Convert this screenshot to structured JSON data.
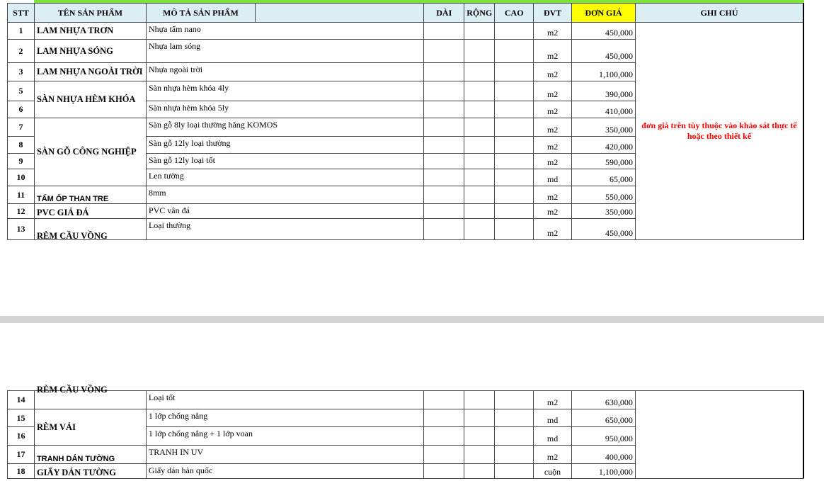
{
  "header": {
    "stt": "STT",
    "name": "TÊN SẢN PHẨM",
    "desc": "MÔ TẢ SẢN PHẨM",
    "length": "DÀI",
    "width": "RỘNG",
    "height": "CAO",
    "unit": "ĐVT",
    "price": "ĐƠN GIÁ",
    "note": "GHI CHÚ"
  },
  "colors": {
    "header_bg": "#dbeef4",
    "price_header_bg": "#ffff00",
    "note_text": "#ff0000",
    "top_bar": "#7ee33a"
  },
  "note": "đơn giá trên tùy thuộc vào khảo sát thực tế hoặc theo thiết kế",
  "groups": [
    {
      "name": "LAM NHỰA TRƠN",
      "items": [
        {
          "stt": "1",
          "desc": "Nhựa tấm nano",
          "unit": "m2",
          "price": "450,000"
        }
      ]
    },
    {
      "name": "LAM NHỰA SÓNG",
      "items": [
        {
          "stt": "2",
          "desc": "Nhựa lam sóng",
          "unit": "m2",
          "price": "450,000"
        }
      ]
    },
    {
      "name": "LAM NHỰA NGOÀI TRỜI",
      "items": [
        {
          "stt": "3",
          "desc": "Nhựa ngoài trời",
          "unit": "m2",
          "price": "1,100,000"
        }
      ]
    },
    {
      "name": "SÀN NHỰA HÈM KHÓA",
      "items": [
        {
          "stt": "5",
          "desc": "Sàn nhựa hèm khóa 4ly",
          "unit": "m2",
          "price": "390,000"
        },
        {
          "stt": "6",
          "desc": "Sàn nhựa hèm khóa 5ly",
          "unit": "m2",
          "price": "410,000"
        }
      ]
    },
    {
      "name": "SÀN GỖ CÔNG NGHIỆP",
      "items": [
        {
          "stt": "7",
          "desc": "Sàn gỗ 8ly loại thường hãng KOMOS",
          "unit": "m2",
          "price": "350,000"
        },
        {
          "stt": "8",
          "desc": "Sàn gỗ 12ly loại thường",
          "unit": "m2",
          "price": "420,000"
        },
        {
          "stt": "9",
          "desc": "Sàn gỗ 12ly loại tốt",
          "unit": "m2",
          "price": "590,000"
        },
        {
          "stt": "10",
          "desc": "Len tường",
          "unit": "md",
          "price": "65,000"
        }
      ]
    },
    {
      "name": "TẤM ỐP THAN TRE",
      "items": [
        {
          "stt": "11",
          "desc": "8mm",
          "unit": "m2",
          "price": "550,000"
        }
      ]
    },
    {
      "name": "PVC GIẢ ĐÁ",
      "items": [
        {
          "stt": "12",
          "desc": "PVC vân đá",
          "unit": "m2",
          "price": "350,000"
        }
      ]
    },
    {
      "name": "RÈM CẦU VỒNG",
      "items": [
        {
          "stt": "13",
          "desc": "Loại thường",
          "unit": "m2",
          "price": "450,000"
        },
        {
          "stt": "14",
          "desc": "Loại tốt",
          "unit": "m2",
          "price": "630,000"
        }
      ]
    },
    {
      "name": "RÈM VẢI",
      "items": [
        {
          "stt": "15",
          "desc": "1 lớp chống nắng",
          "unit": "md",
          "price": "650,000"
        },
        {
          "stt": "16",
          "desc": "1 lớp chống nắng + 1 lớp voan",
          "unit": "md",
          "price": "950,000"
        }
      ]
    },
    {
      "name": "TRANH DÁN TƯỜNG",
      "items": [
        {
          "stt": "17",
          "desc": "TRANH IN UV",
          "unit": "m2",
          "price": "400,000"
        }
      ]
    },
    {
      "name": "GIẤY DÁN TƯỜNG",
      "items": [
        {
          "stt": "18",
          "desc": "Giấy dán hàn quốc",
          "unit": "cuộn",
          "price": "1,100,000"
        }
      ]
    }
  ]
}
